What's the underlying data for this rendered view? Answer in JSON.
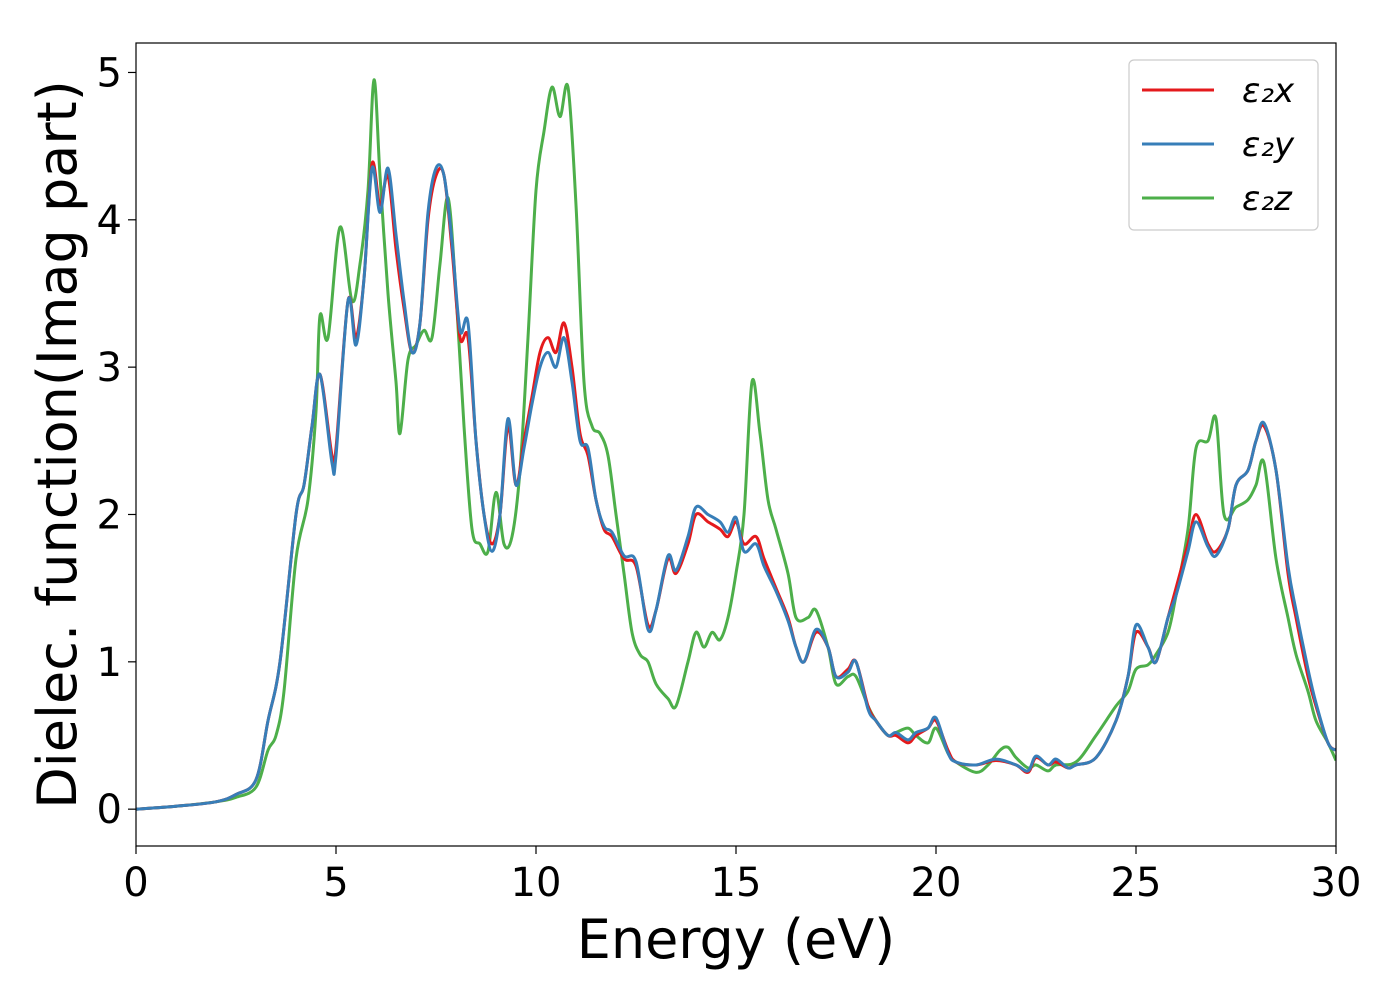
{
  "chart_data": {
    "type": "line",
    "title": "",
    "xlabel": "Energy (eV)",
    "ylabel": "Dielec. function(Imag part)",
    "xlim": [
      0,
      30
    ],
    "ylim": [
      -0.25,
      5.2
    ],
    "xticks": [
      "0",
      "5",
      "10",
      "15",
      "20",
      "25",
      "30"
    ],
    "yticks": [
      "0",
      "1",
      "2",
      "3",
      "4",
      "5"
    ],
    "grid": false,
    "legend_position": "top-right",
    "series": [
      {
        "name": "ε₂x",
        "color": "#e41a1c",
        "x": [
          0,
          1,
          2,
          2.5,
          3,
          3.3,
          3.6,
          4.0,
          4.2,
          4.4,
          4.6,
          4.9,
          5.0,
          5.3,
          5.5,
          5.7,
          5.9,
          6.1,
          6.3,
          6.5,
          6.7,
          6.9,
          7.1,
          7.3,
          7.5,
          7.7,
          7.9,
          8.1,
          8.3,
          8.5,
          8.7,
          8.9,
          9.1,
          9.3,
          9.5,
          9.7,
          9.9,
          10.1,
          10.3,
          10.5,
          10.7,
          10.9,
          11.1,
          11.3,
          11.5,
          11.7,
          11.9,
          12.2,
          12.5,
          12.8,
          13.0,
          13.3,
          13.5,
          13.8,
          14.0,
          14.3,
          14.6,
          14.8,
          15.0,
          15.2,
          15.5,
          15.7,
          16.0,
          16.3,
          16.5,
          16.7,
          17.0,
          17.3,
          17.5,
          17.8,
          18.0,
          18.3,
          18.5,
          18.8,
          19.0,
          19.3,
          19.5,
          19.8,
          20.0,
          20.3,
          20.5,
          21.0,
          21.5,
          22.0,
          22.3,
          22.5,
          22.8,
          23.0,
          23.3,
          23.5,
          24.0,
          24.5,
          24.8,
          25.0,
          25.3,
          25.5,
          25.8,
          26.0,
          26.3,
          26.5,
          26.8,
          27.0,
          27.3,
          27.5,
          27.8,
          28.0,
          28.2,
          28.5,
          28.8,
          29.0,
          29.3,
          29.5,
          29.8,
          30.0
        ],
        "values": [
          0,
          0.02,
          0.05,
          0.1,
          0.2,
          0.6,
          1.0,
          2.0,
          2.2,
          2.6,
          2.95,
          2.4,
          2.45,
          3.45,
          3.2,
          3.6,
          4.38,
          4.1,
          4.3,
          3.8,
          3.4,
          3.1,
          3.3,
          4.0,
          4.3,
          4.3,
          3.8,
          3.2,
          3.2,
          2.5,
          2.0,
          1.8,
          2.0,
          2.6,
          2.2,
          2.5,
          2.8,
          3.1,
          3.2,
          3.1,
          3.3,
          3.0,
          2.55,
          2.4,
          2.1,
          1.9,
          1.85,
          1.7,
          1.65,
          1.25,
          1.35,
          1.7,
          1.6,
          1.8,
          2.0,
          1.95,
          1.9,
          1.85,
          1.95,
          1.8,
          1.85,
          1.7,
          1.5,
          1.3,
          1.1,
          1.0,
          1.2,
          1.1,
          0.9,
          0.95,
          1.0,
          0.7,
          0.6,
          0.5,
          0.5,
          0.45,
          0.5,
          0.55,
          0.6,
          0.4,
          0.32,
          0.3,
          0.33,
          0.3,
          0.25,
          0.35,
          0.3,
          0.32,
          0.28,
          0.3,
          0.35,
          0.6,
          0.9,
          1.2,
          1.1,
          1.0,
          1.3,
          1.5,
          1.8,
          2.0,
          1.8,
          1.75,
          1.9,
          2.2,
          2.3,
          2.5,
          2.6,
          2.3,
          1.6,
          1.3,
          0.9,
          0.7,
          0.45,
          0.4
        ]
      },
      {
        "name": "ε₂y",
        "color": "#377eb8",
        "x": [
          0,
          1,
          2,
          2.5,
          3,
          3.3,
          3.6,
          4.0,
          4.2,
          4.4,
          4.6,
          4.9,
          5.0,
          5.3,
          5.5,
          5.7,
          5.9,
          6.1,
          6.3,
          6.5,
          6.7,
          6.9,
          7.1,
          7.3,
          7.5,
          7.7,
          7.9,
          8.1,
          8.3,
          8.5,
          8.7,
          8.9,
          9.1,
          9.3,
          9.5,
          9.7,
          9.9,
          10.1,
          10.3,
          10.5,
          10.7,
          10.9,
          11.1,
          11.3,
          11.5,
          11.7,
          11.9,
          12.2,
          12.5,
          12.8,
          13.0,
          13.3,
          13.5,
          13.8,
          14.0,
          14.3,
          14.6,
          14.8,
          15.0,
          15.2,
          15.5,
          15.7,
          16.0,
          16.3,
          16.5,
          16.7,
          17.0,
          17.3,
          17.5,
          17.8,
          18.0,
          18.3,
          18.5,
          18.8,
          19.0,
          19.3,
          19.5,
          19.8,
          20.0,
          20.3,
          20.5,
          21.0,
          21.5,
          22.0,
          22.3,
          22.5,
          22.8,
          23.0,
          23.3,
          23.5,
          24.0,
          24.5,
          24.8,
          25.0,
          25.3,
          25.5,
          25.8,
          26.0,
          26.3,
          26.5,
          26.8,
          27.0,
          27.3,
          27.5,
          27.8,
          28.0,
          28.2,
          28.5,
          28.8,
          29.0,
          29.3,
          29.5,
          29.8,
          30.0
        ],
        "values": [
          0,
          0.02,
          0.05,
          0.1,
          0.2,
          0.6,
          1.0,
          2.0,
          2.2,
          2.6,
          2.95,
          2.35,
          2.4,
          3.45,
          3.15,
          3.6,
          4.35,
          4.05,
          4.35,
          3.9,
          3.45,
          3.1,
          3.3,
          4.05,
          4.35,
          4.3,
          3.85,
          3.25,
          3.3,
          2.5,
          2.0,
          1.75,
          2.0,
          2.65,
          2.2,
          2.45,
          2.75,
          3.0,
          3.1,
          3.0,
          3.2,
          2.9,
          2.5,
          2.45,
          2.1,
          1.92,
          1.88,
          1.72,
          1.68,
          1.22,
          1.35,
          1.72,
          1.62,
          1.85,
          2.05,
          2.0,
          1.95,
          1.88,
          1.98,
          1.75,
          1.8,
          1.65,
          1.48,
          1.28,
          1.1,
          1.0,
          1.22,
          1.1,
          0.9,
          0.93,
          1.0,
          0.68,
          0.6,
          0.5,
          0.52,
          0.47,
          0.52,
          0.55,
          0.62,
          0.38,
          0.32,
          0.3,
          0.34,
          0.3,
          0.26,
          0.36,
          0.3,
          0.34,
          0.28,
          0.3,
          0.35,
          0.6,
          0.9,
          1.25,
          1.1,
          1.0,
          1.3,
          1.45,
          1.75,
          1.95,
          1.78,
          1.72,
          1.9,
          2.2,
          2.3,
          2.5,
          2.62,
          2.3,
          1.65,
          1.35,
          0.95,
          0.72,
          0.45,
          0.4
        ]
      },
      {
        "name": "ε₂z",
        "color": "#4daf4a",
        "x": [
          0,
          1,
          2,
          2.5,
          3,
          3.3,
          3.5,
          3.7,
          4.0,
          4.3,
          4.5,
          4.6,
          4.8,
          5.1,
          5.4,
          5.6,
          5.8,
          5.95,
          6.1,
          6.3,
          6.5,
          6.6,
          6.8,
          7.0,
          7.2,
          7.4,
          7.6,
          7.8,
          8.0,
          8.2,
          8.4,
          8.6,
          8.8,
          9.0,
          9.2,
          9.4,
          9.6,
          9.8,
          10.0,
          10.2,
          10.4,
          10.6,
          10.8,
          11.0,
          11.2,
          11.4,
          11.6,
          11.8,
          12.0,
          12.2,
          12.4,
          12.6,
          12.8,
          13.0,
          13.3,
          13.5,
          13.8,
          14.0,
          14.2,
          14.4,
          14.6,
          14.8,
          15.0,
          15.2,
          15.4,
          15.6,
          15.8,
          16.0,
          16.3,
          16.5,
          16.8,
          17.0,
          17.3,
          17.5,
          17.8,
          18.0,
          18.3,
          18.5,
          18.8,
          19.0,
          19.3,
          19.5,
          19.8,
          20.0,
          20.3,
          20.5,
          21.0,
          21.3,
          21.6,
          21.8,
          22.0,
          22.3,
          22.5,
          22.8,
          23.0,
          23.5,
          24.0,
          24.5,
          24.8,
          25.0,
          25.3,
          25.5,
          25.8,
          26.0,
          26.3,
          26.5,
          26.8,
          27.0,
          27.2,
          27.5,
          27.8,
          28.0,
          28.2,
          28.5,
          28.8,
          29.0,
          29.3,
          29.5,
          29.8,
          30.0
        ],
        "values": [
          0,
          0.02,
          0.05,
          0.08,
          0.15,
          0.4,
          0.5,
          0.8,
          1.7,
          2.1,
          2.7,
          3.35,
          3.2,
          3.95,
          3.45,
          3.7,
          4.2,
          4.95,
          4.3,
          3.5,
          2.9,
          2.55,
          3.05,
          3.15,
          3.25,
          3.2,
          3.7,
          4.15,
          3.5,
          2.6,
          1.9,
          1.8,
          1.75,
          2.15,
          1.8,
          1.85,
          2.3,
          3.2,
          4.2,
          4.6,
          4.9,
          4.7,
          4.9,
          4.1,
          2.9,
          2.6,
          2.55,
          2.4,
          2.0,
          1.6,
          1.2,
          1.05,
          1.0,
          0.85,
          0.75,
          0.7,
          1.0,
          1.2,
          1.1,
          1.2,
          1.15,
          1.3,
          1.6,
          2.0,
          2.9,
          2.55,
          2.1,
          1.9,
          1.6,
          1.3,
          1.3,
          1.35,
          1.1,
          0.85,
          0.9,
          0.9,
          0.7,
          0.6,
          0.5,
          0.52,
          0.55,
          0.5,
          0.45,
          0.55,
          0.38,
          0.32,
          0.25,
          0.3,
          0.4,
          0.42,
          0.35,
          0.28,
          0.3,
          0.26,
          0.3,
          0.32,
          0.5,
          0.7,
          0.8,
          0.95,
          0.98,
          1.05,
          1.2,
          1.45,
          1.9,
          2.45,
          2.5,
          2.65,
          2.0,
          2.05,
          2.1,
          2.2,
          2.35,
          1.7,
          1.3,
          1.05,
          0.8,
          0.6,
          0.45,
          0.33
        ]
      }
    ]
  }
}
